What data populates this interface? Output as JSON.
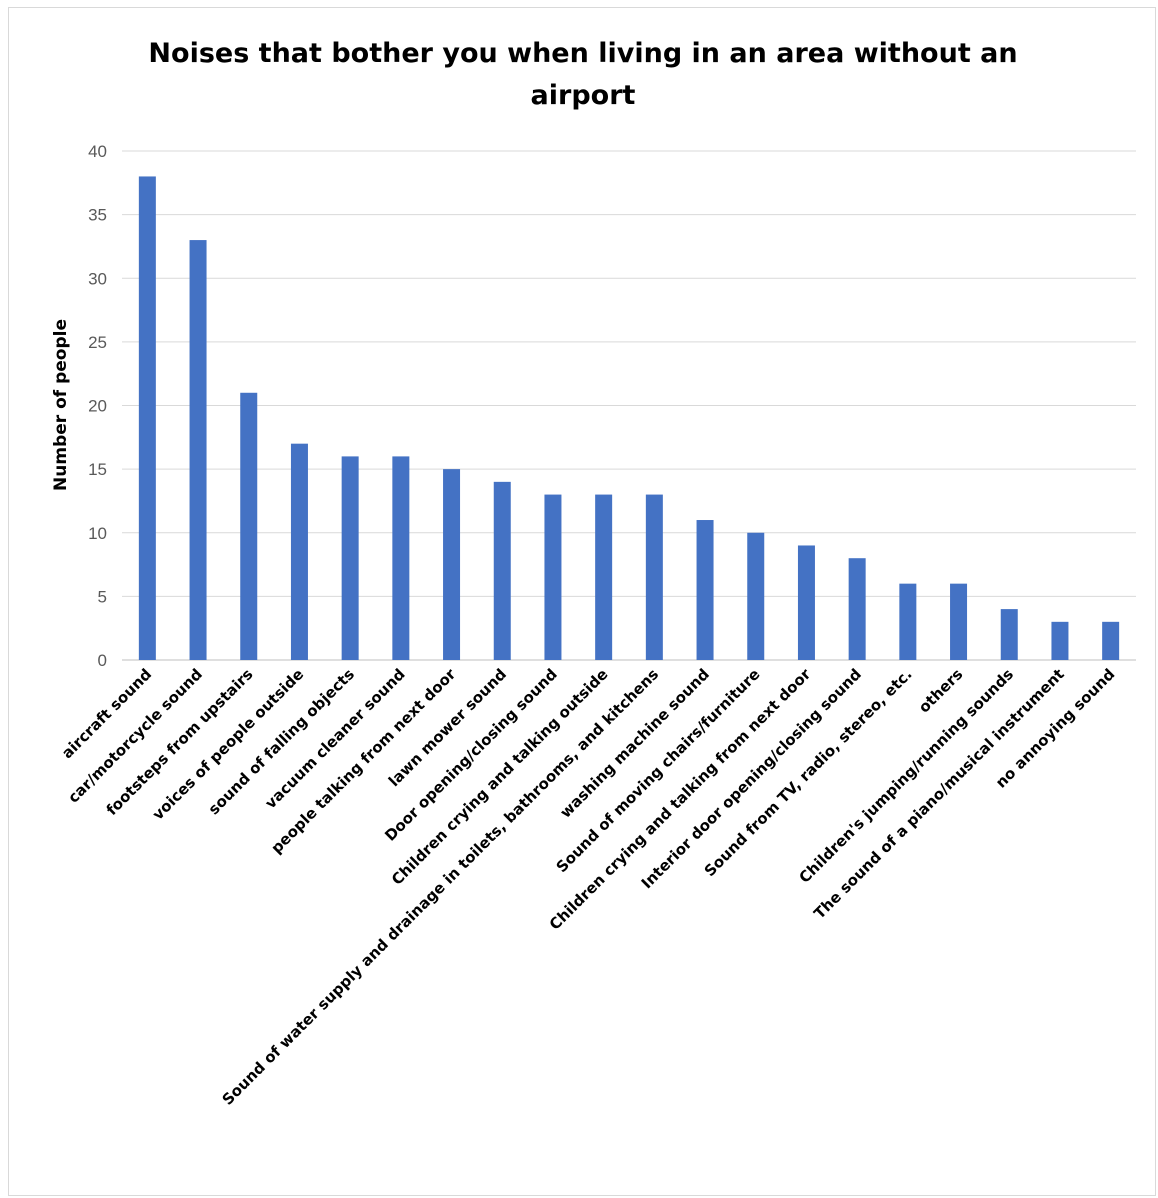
{
  "chart_data": {
    "type": "bar",
    "title_line1": "Noises that bother you when living in an area without an",
    "title_line2": "airport",
    "ylabel": "Number of people",
    "xlabel": "",
    "ylim": [
      0,
      40
    ],
    "yticks": [
      0,
      5,
      10,
      15,
      20,
      25,
      30,
      35,
      40
    ],
    "grid": true,
    "bar_color": "#4472C4",
    "categories": [
      "aircraft sound",
      "car/motorcycle sound",
      "footsteps from upstairs",
      "voices of people outside",
      "sound of falling objects",
      "vacuum cleaner sound",
      "people talking from next door",
      "lawn mower sound",
      "Door opening/closing sound",
      "Children crying and talking outside",
      "Sound of water supply and drainage in toilets, bathrooms, and kitchens",
      "washing machine sound",
      "Sound of moving chairs/furniture",
      "Children crying and talking from next door",
      "Interior door opening/closing sound",
      "Sound from TV, radio, stereo, etc.",
      "others",
      "Children's jumping/running sounds",
      "The sound of a piano/musical instrument",
      "no annoying sound"
    ],
    "values": [
      38,
      33,
      21,
      17,
      16,
      16,
      15,
      14,
      13,
      13,
      13,
      11,
      10,
      9,
      8,
      6,
      6,
      4,
      3,
      3
    ]
  }
}
